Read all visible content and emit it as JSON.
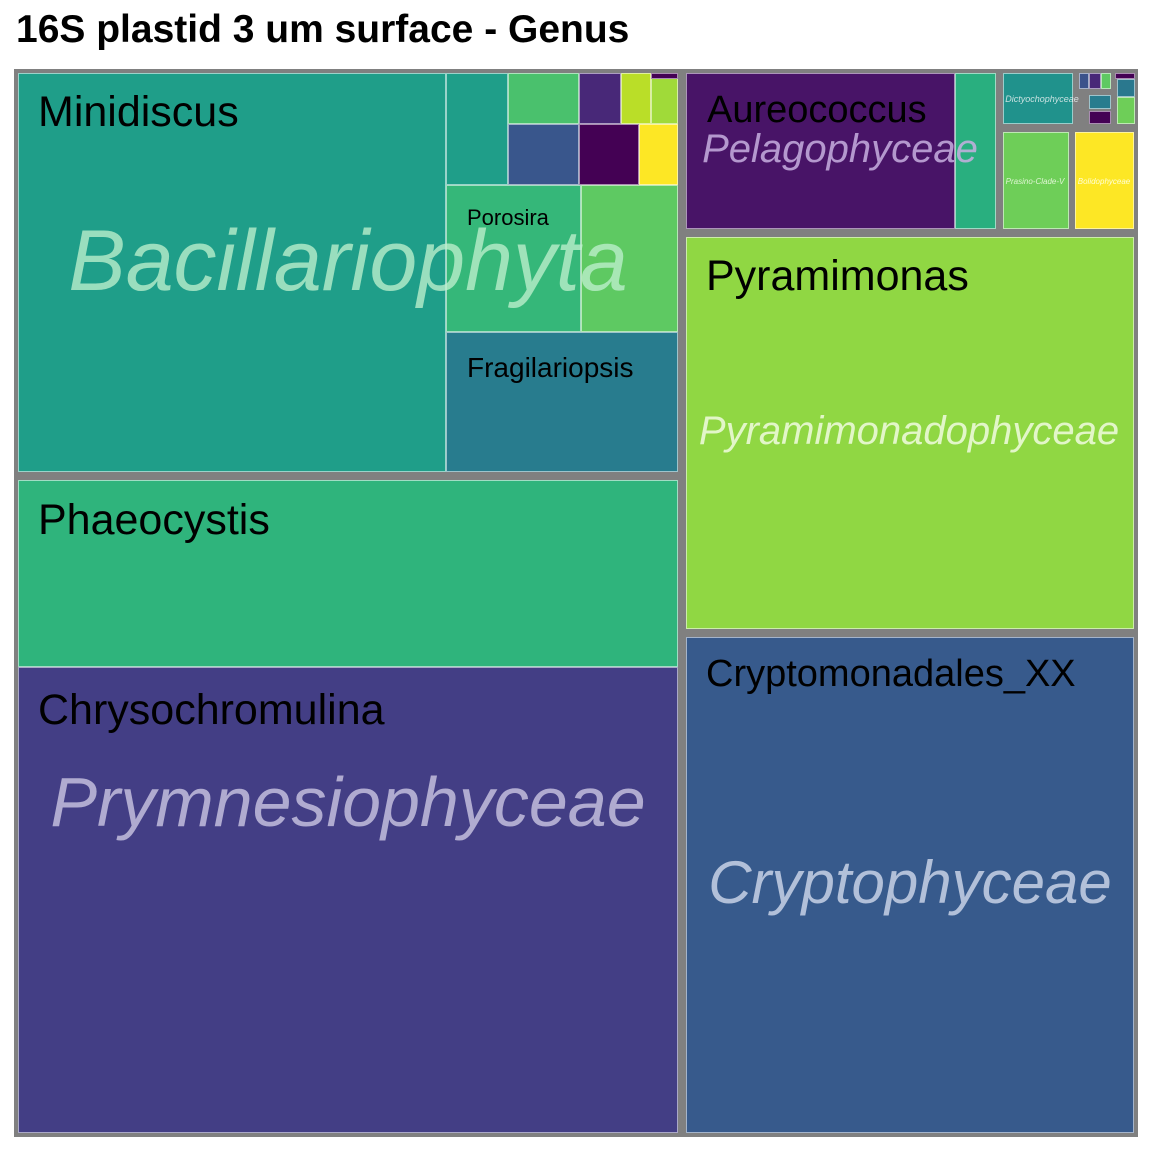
{
  "title": "16S plastid 3 um surface - Genus",
  "chart_data": {
    "type": "treemap",
    "title": "16S plastid 3 um surface - Genus",
    "groups": [
      {
        "class": "Bacillariophyta",
        "genera": [
          "Minidiscus",
          "Porosira",
          "Fragilariopsis"
        ]
      },
      {
        "class": "Prymnesiophyceae",
        "genera": [
          "Phaeocystis",
          "Chrysochromulina"
        ]
      },
      {
        "class": "Pelagophyceae",
        "genera": [
          "Aureococcus"
        ]
      },
      {
        "class": "Dictyochophyceae",
        "genera": []
      },
      {
        "class": "Prasino-Clade-V",
        "genera": []
      },
      {
        "class": "Bolidophyceae",
        "genera": []
      },
      {
        "class": "Pyramimonadophyceae",
        "genera": [
          "Pyramimonas"
        ]
      },
      {
        "class": "Cryptophyceae",
        "genera": [
          "Cryptomonadales_XX"
        ]
      }
    ]
  }
}
